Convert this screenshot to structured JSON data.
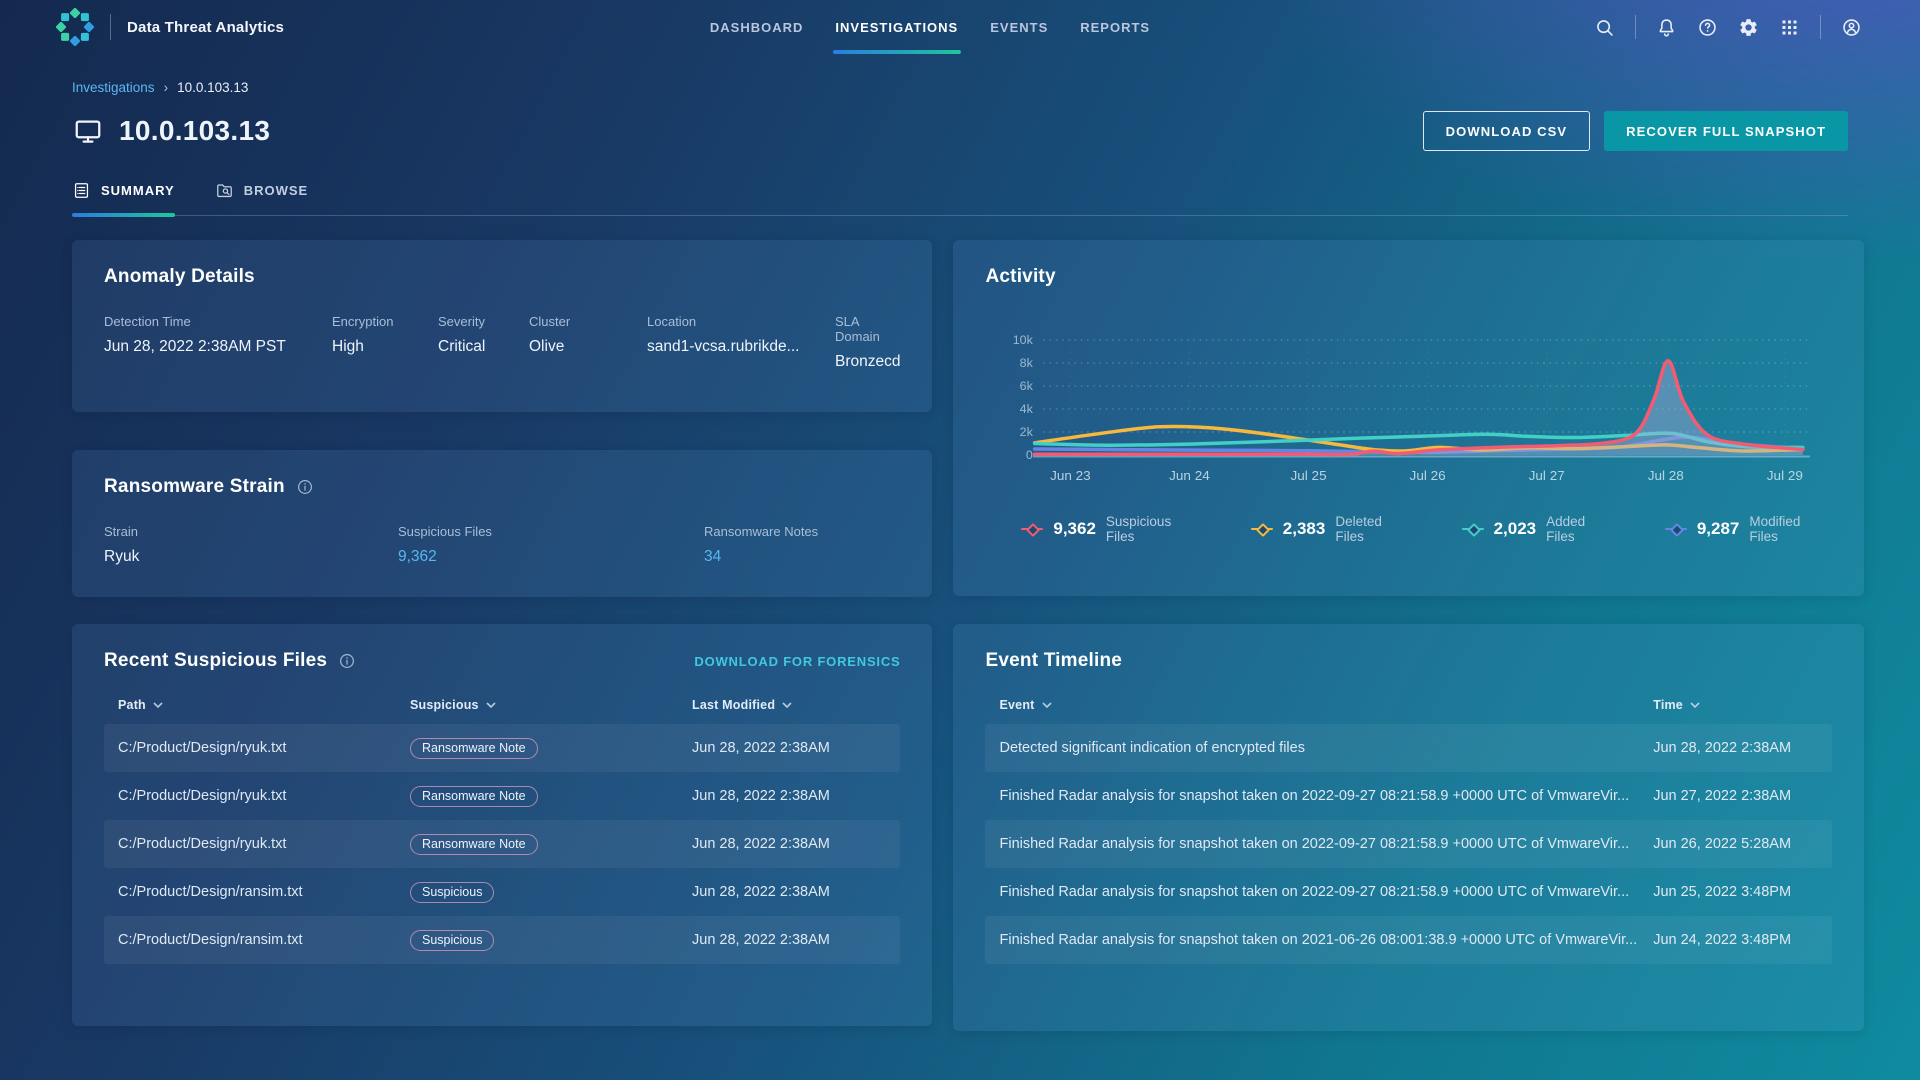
{
  "app": {
    "title": "Data Threat Analytics"
  },
  "nav": {
    "items": [
      {
        "label": "DASHBOARD",
        "active": false
      },
      {
        "label": "INVESTIGATIONS",
        "active": true
      },
      {
        "label": "EVENTS",
        "active": false
      },
      {
        "label": "REPORTS",
        "active": false
      }
    ]
  },
  "breadcrumb": {
    "parent": "Investigations",
    "separator": "›",
    "current": "10.0.103.13"
  },
  "page": {
    "title": "10.0.103.13",
    "actions": {
      "download_csv": "DOWNLOAD CSV",
      "recover_snapshot": "RECOVER FULL SNAPSHOT"
    },
    "tabs": [
      {
        "label": "SUMMARY",
        "active": true
      },
      {
        "label": "BROWSE",
        "active": false
      }
    ]
  },
  "anomaly_details": {
    "title": "Anomaly Details",
    "fields": [
      {
        "label": "Detection Time",
        "value": "Jun 28, 2022 2:38AM PST"
      },
      {
        "label": "Encryption",
        "value": "High"
      },
      {
        "label": "Severity",
        "value": "Critical"
      },
      {
        "label": "Cluster",
        "value": "Olive"
      },
      {
        "label": "Location",
        "value": "sand1-vcsa.rubrikde..."
      },
      {
        "label": "SLA Domain",
        "value": "Bronzecd"
      }
    ]
  },
  "ransomware_strain": {
    "title": "Ransomware Strain",
    "fields": [
      {
        "label": "Strain",
        "value": "Ryuk"
      },
      {
        "label": "Suspicious Files",
        "value": "9,362"
      },
      {
        "label": "Ransomware Notes",
        "value": "34"
      }
    ]
  },
  "suspicious_files": {
    "title": "Recent Suspicious Files",
    "action": "DOWNLOAD FOR FORENSICS",
    "columns": {
      "path": "Path",
      "suspicious": "Suspicious",
      "modified": "Last Modified"
    },
    "rows": [
      {
        "path": "C:/Product/Design/ryuk.txt",
        "badge": "Ransomware Note",
        "modified": "Jun 28, 2022 2:38AM"
      },
      {
        "path": "C:/Product/Design/ryuk.txt",
        "badge": "Ransomware Note",
        "modified": "Jun 28, 2022 2:38AM"
      },
      {
        "path": "C:/Product/Design/ryuk.txt",
        "badge": "Ransomware Note",
        "modified": "Jun 28, 2022 2:38AM"
      },
      {
        "path": "C:/Product/Design/ransim.txt",
        "badge": "Suspicious",
        "modified": "Jun 28, 2022 2:38AM"
      },
      {
        "path": "C:/Product/Design/ransim.txt",
        "badge": "Suspicious",
        "modified": "Jun 28, 2022 2:38AM"
      }
    ]
  },
  "activity": {
    "title": "Activity",
    "legend": [
      {
        "value": "9,362",
        "label": "Suspicious Files"
      },
      {
        "value": "2,383",
        "label": "Deleted Files"
      },
      {
        "value": "2,023",
        "label": "Added Files"
      },
      {
        "value": "9,287",
        "label": "Modified Files"
      }
    ]
  },
  "chart_data": {
    "type": "line",
    "title": "Activity",
    "categories": [
      "Jun 23",
      "Jun 24",
      "Jul 25",
      "Jul 26",
      "Jul 27",
      "Jul 28",
      "Jul 29"
    ],
    "ylim": [
      0,
      10000
    ],
    "yticks": [
      {
        "v": 0,
        "label": "0"
      },
      {
        "v": 2000,
        "label": "2k"
      },
      {
        "v": 4000,
        "label": "4k"
      },
      {
        "v": 6000,
        "label": "6k"
      },
      {
        "v": 8000,
        "label": "8k"
      },
      {
        "v": 10000,
        "label": "10k"
      }
    ],
    "grid": "dotted-horizontal",
    "legend_position": "bottom",
    "area_fill_color": "rgba(168,175,216,0.42)",
    "series": [
      {
        "name": "Suspicious Files",
        "color": "#f25c72",
        "total": 9362,
        "fill": true,
        "points": [
          [
            -0.3,
            60
          ],
          [
            0.5,
            60
          ],
          [
            1.2,
            60
          ],
          [
            2,
            60
          ],
          [
            2.35,
            60
          ],
          [
            2.55,
            340
          ],
          [
            2.75,
            130
          ],
          [
            3.1,
            450
          ],
          [
            3.6,
            680
          ],
          [
            4.1,
            820
          ],
          [
            4.5,
            1050
          ],
          [
            4.75,
            1900
          ],
          [
            4.9,
            4800
          ],
          [
            5.02,
            8200
          ],
          [
            5.15,
            4600
          ],
          [
            5.35,
            1750
          ],
          [
            5.65,
            950
          ],
          [
            6.15,
            480
          ]
        ]
      },
      {
        "name": "Deleted Files",
        "color": "#f6b93e",
        "total": 2383,
        "fill": false,
        "points": [
          [
            -0.3,
            1050
          ],
          [
            0.2,
            1800
          ],
          [
            0.75,
            2450
          ],
          [
            1.3,
            2250
          ],
          [
            2,
            1300
          ],
          [
            2.5,
            520
          ],
          [
            2.8,
            350
          ],
          [
            3.1,
            660
          ],
          [
            3.45,
            430
          ],
          [
            3.85,
            620
          ],
          [
            4.25,
            560
          ],
          [
            4.65,
            720
          ],
          [
            5,
            880
          ],
          [
            5.3,
            620
          ],
          [
            5.65,
            350
          ],
          [
            6.15,
            480
          ]
        ]
      },
      {
        "name": "Added Files",
        "color": "#41cfc6",
        "total": 2023,
        "fill": false,
        "points": [
          [
            -0.3,
            1000
          ],
          [
            0.3,
            850
          ],
          [
            1,
            950
          ],
          [
            1.7,
            1180
          ],
          [
            2.4,
            1450
          ],
          [
            3,
            1650
          ],
          [
            3.5,
            1800
          ],
          [
            3.85,
            1620
          ],
          [
            4.25,
            1520
          ],
          [
            4.7,
            1720
          ],
          [
            5.05,
            1880
          ],
          [
            5.35,
            1150
          ],
          [
            5.7,
            700
          ],
          [
            6.15,
            660
          ]
        ]
      },
      {
        "name": "Modified Files",
        "color": "#6487e3",
        "total": 9287,
        "fill": false,
        "points": [
          [
            -0.3,
            520
          ],
          [
            0.5,
            460
          ],
          [
            1.2,
            420
          ],
          [
            2,
            370
          ],
          [
            2.6,
            290
          ],
          [
            3.1,
            250
          ],
          [
            3.6,
            390
          ],
          [
            4.1,
            500
          ],
          [
            4.6,
            680
          ],
          [
            4.95,
            1280
          ],
          [
            5.2,
            1560
          ],
          [
            5.55,
            1020
          ],
          [
            6.15,
            560
          ]
        ]
      }
    ]
  },
  "event_timeline": {
    "title": "Event Timeline",
    "columns": {
      "event": "Event",
      "time": "Time"
    },
    "rows": [
      {
        "event": "Detected significant indication of encrypted files",
        "time": "Jun 28, 2022 2:38AM"
      },
      {
        "event": "Finished Radar analysis for snapshot taken on 2022-09-27 08:21:58.9 +0000 UTC of VmwareVir...",
        "time": "Jun 27, 2022 2:38AM"
      },
      {
        "event": "Finished Radar analysis for snapshot taken on 2022-09-27 08:21:58.9 +0000 UTC of VmwareVir...",
        "time": "Jun 26, 2022 5:28AM"
      },
      {
        "event": "Finished Radar analysis for snapshot taken on 2022-09-27 08:21:58.9 +0000 UTC of VmwareVir...",
        "time": "Jun 25, 2022 3:48PM"
      },
      {
        "event": "Finished Radar analysis for snapshot taken on 2021-06-26 08:001:38.9 +0000 UTC of VmwareVir...",
        "time": "Jun 24, 2022 3:48PM"
      }
    ]
  },
  "colors": {
    "accent_teal_button": "#0a97a5",
    "link_blue": "#58b7f0",
    "link_cyan": "#41c8e0",
    "tab_underline_start": "#2c7ce0",
    "tab_underline_end": "#1ec79a"
  }
}
